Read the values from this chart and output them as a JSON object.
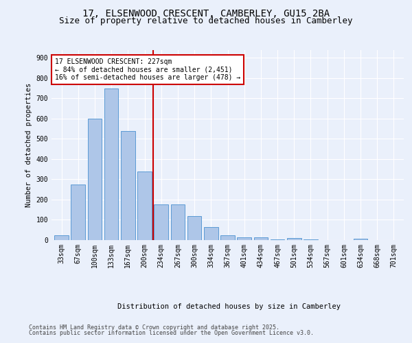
{
  "title_line1": "17, ELSENWOOD CRESCENT, CAMBERLEY, GU15 2BA",
  "title_line2": "Size of property relative to detached houses in Camberley",
  "xlabel": "Distribution of detached houses by size in Camberley",
  "ylabel": "Number of detached properties",
  "bar_labels": [
    "33sqm",
    "67sqm",
    "100sqm",
    "133sqm",
    "167sqm",
    "200sqm",
    "234sqm",
    "267sqm",
    "300sqm",
    "334sqm",
    "367sqm",
    "401sqm",
    "434sqm",
    "467sqm",
    "501sqm",
    "534sqm",
    "567sqm",
    "601sqm",
    "634sqm",
    "668sqm",
    "701sqm"
  ],
  "bar_values": [
    25,
    275,
    600,
    750,
    540,
    340,
    175,
    175,
    120,
    65,
    25,
    12,
    15,
    5,
    10,
    5,
    0,
    0,
    8,
    0,
    0
  ],
  "bar_color": "#aec6e8",
  "bar_edge_color": "#5b9bd5",
  "property_line_x": 5.5,
  "annotation_text": "17 ELSENWOOD CRESCENT: 227sqm\n← 84% of detached houses are smaller (2,451)\n16% of semi-detached houses are larger (478) →",
  "annotation_box_color": "#ffffff",
  "annotation_box_edge": "#cc0000",
  "line_color": "#cc0000",
  "ylim": [
    0,
    940
  ],
  "yticks": [
    0,
    100,
    200,
    300,
    400,
    500,
    600,
    700,
    800,
    900
  ],
  "footer_line1": "Contains HM Land Registry data © Crown copyright and database right 2025.",
  "footer_line2": "Contains public sector information licensed under the Open Government Licence v3.0.",
  "bg_color": "#eaf0fb",
  "plot_bg_color": "#eaf0fb",
  "grid_color": "#ffffff",
  "title_fontsize": 10,
  "subtitle_fontsize": 9,
  "label_fontsize": 7.5,
  "tick_fontsize": 7,
  "footer_fontsize": 6,
  "annotation_fontsize": 7
}
